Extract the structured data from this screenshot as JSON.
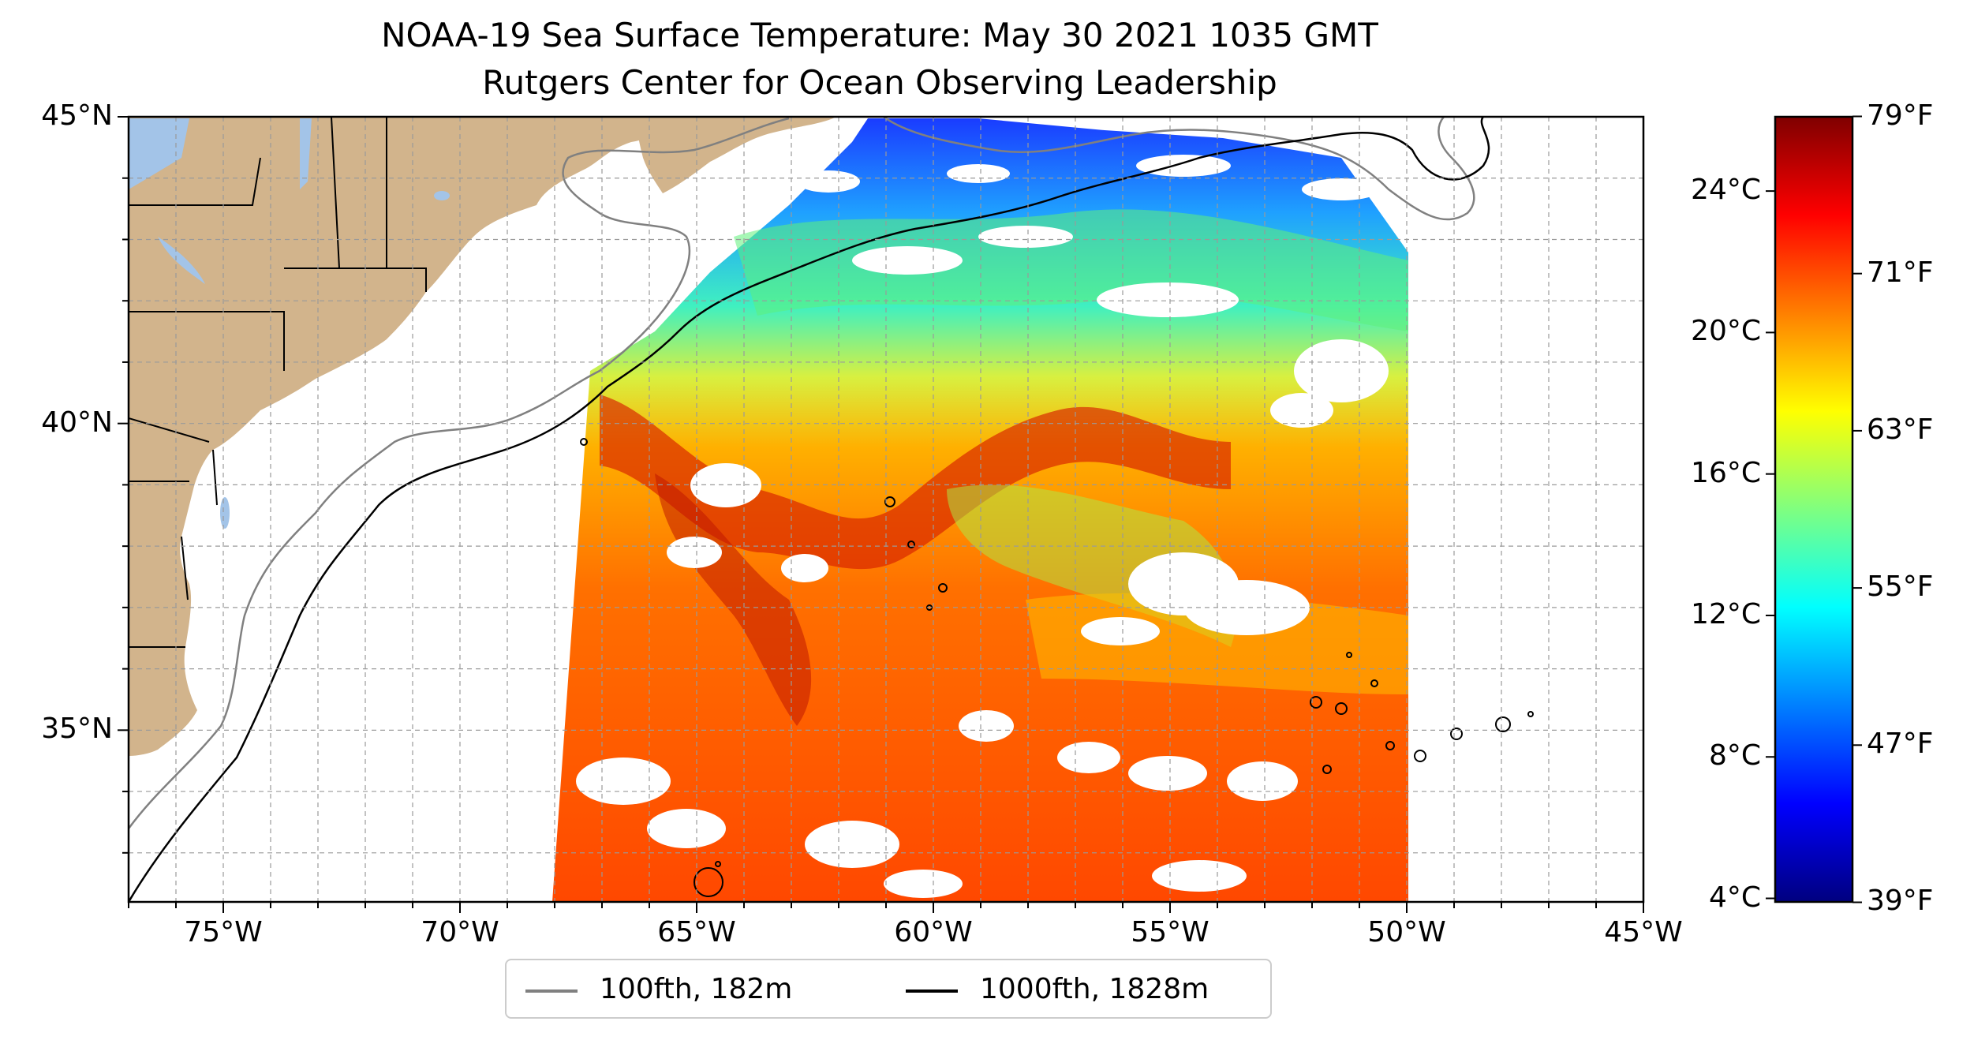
{
  "title": {
    "line1": "NOAA-19 Sea Surface Temperature: May 30 2021 1035 GMT",
    "line2": "Rutgers Center for Ocean Observing Leadership"
  },
  "map": {
    "lon_range": [
      -77,
      -45
    ],
    "lat_range": [
      32.2,
      45
    ],
    "lon_ticks": [
      {
        "value": -75,
        "label": "75°W"
      },
      {
        "value": -70,
        "label": "70°W"
      },
      {
        "value": -65,
        "label": "65°W"
      },
      {
        "value": -60,
        "label": "60°W"
      },
      {
        "value": -55,
        "label": "55°W"
      },
      {
        "value": -50,
        "label": "50°W"
      },
      {
        "value": -45,
        "label": "45°W"
      }
    ],
    "lat_ticks": [
      {
        "value": 45,
        "label": "45°N"
      },
      {
        "value": 40,
        "label": "40°N"
      },
      {
        "value": 35,
        "label": "35°N"
      }
    ],
    "gridlines": true,
    "land_color": "#d2b48c",
    "water_color": "#a3c4e8",
    "colormap": "jet",
    "swath_lon": [
      -68.0,
      -50.0
    ]
  },
  "colorbar": {
    "celsius_ticks": [
      {
        "value": 24,
        "label": "24°C"
      },
      {
        "value": 20,
        "label": "20°C"
      },
      {
        "value": 16,
        "label": "16°C"
      },
      {
        "value": 12,
        "label": "12°C"
      },
      {
        "value": 8,
        "label": "8°C"
      },
      {
        "value": 4,
        "label": "4°C"
      }
    ],
    "fahrenheit_ticks": [
      {
        "value": 79,
        "label": "79°F"
      },
      {
        "value": 71,
        "label": "71°F"
      },
      {
        "value": 63,
        "label": "63°F"
      },
      {
        "value": 55,
        "label": "55°F"
      },
      {
        "value": 47,
        "label": "47°F"
      },
      {
        "value": 39,
        "label": "39°F"
      }
    ],
    "range_celsius": [
      3.9,
      26.1
    ]
  },
  "legend": {
    "items": [
      {
        "label": "100fth, 182m",
        "color": "#808080"
      },
      {
        "label": "1000fth, 1828m",
        "color": "#000000"
      }
    ]
  }
}
